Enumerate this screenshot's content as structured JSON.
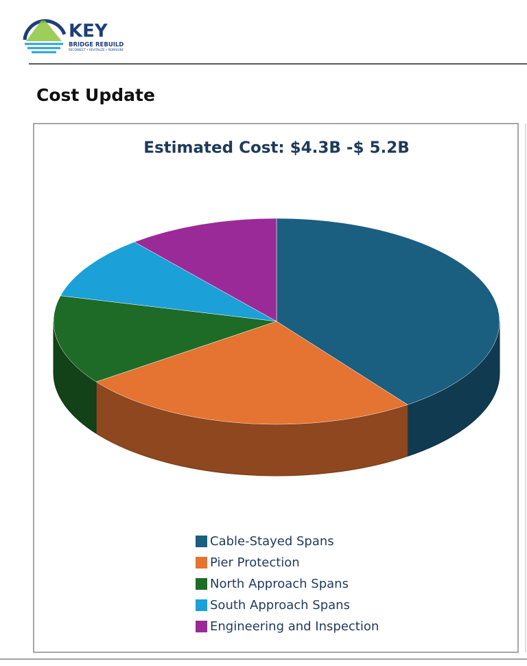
{
  "header": {
    "logo_word": "KEY",
    "logo_sub": "BRIDGE REBUILD",
    "logo_tagline": "RECONNECT • REVITALIZE • REIMAGINE",
    "section_title": "Cost Update"
  },
  "chart_data": {
    "type": "pie",
    "title": "Estimated Cost: $4.3B -$ 5.2B",
    "categories": [
      "Cable-Stayed Spans",
      "Pier Protection",
      "North Approach Spans",
      "South Approach Spans",
      "Engineering and Inspection"
    ],
    "values": [
      40,
      25,
      14,
      10,
      11
    ],
    "colors": [
      "#1a5e80",
      "#e57331",
      "#1e6b27",
      "#1ba0d8",
      "#9b2a99"
    ],
    "legend": "bottom"
  }
}
